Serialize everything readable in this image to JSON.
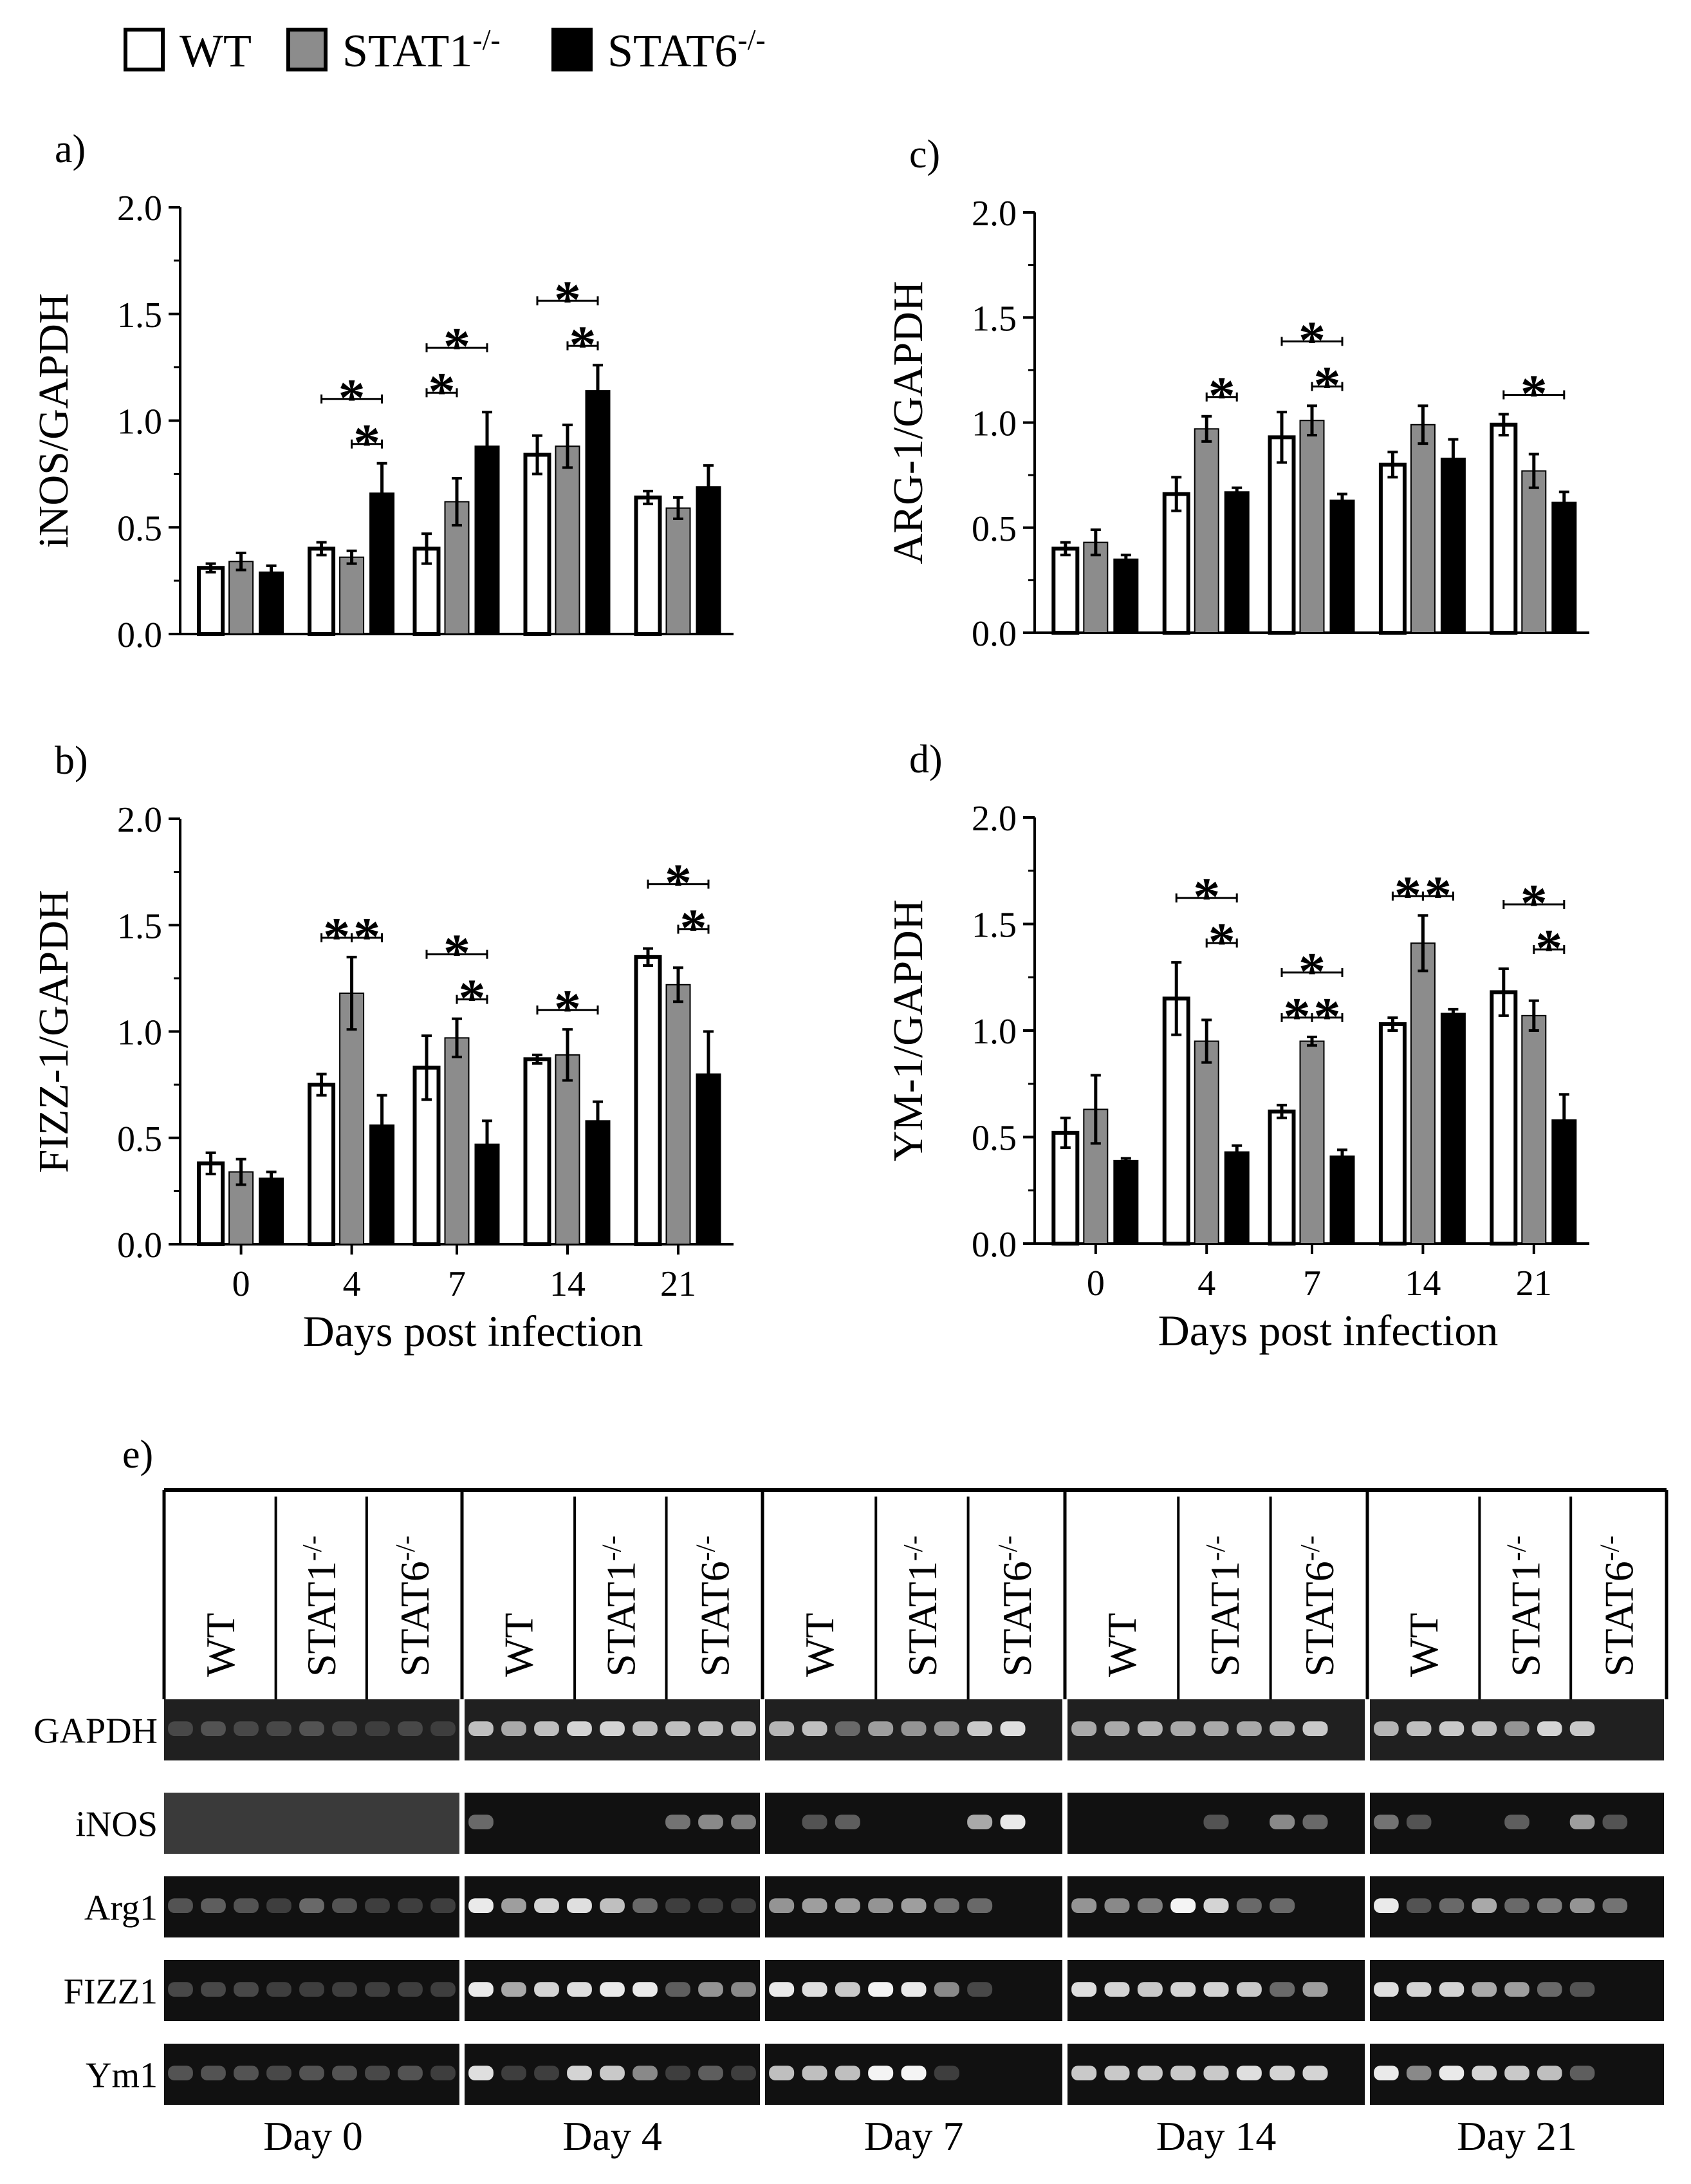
{
  "legend": {
    "items": [
      {
        "label": "WT",
        "sup": "",
        "color": "#ffffff"
      },
      {
        "label": "STAT1",
        "sup": "-/-",
        "color": "#8c8c8c"
      },
      {
        "label": "STAT6",
        "sup": "-/-",
        "color": "#000000"
      }
    ]
  },
  "colors": {
    "wt": "#ffffff",
    "stat1": "#8c8c8c",
    "stat6": "#000000"
  },
  "chart_data": [
    {
      "id": "a",
      "panel_label": "a)",
      "type": "bar",
      "ylabel": "iNOS/GAPDH",
      "xlabel": "",
      "ylim": [
        0,
        2.0
      ],
      "yticks": [
        "0.0",
        "0.5",
        "1.0",
        "1.5",
        "2.0"
      ],
      "categories": [
        "0",
        "4",
        "7",
        "14",
        "21"
      ],
      "show_x_ticks": false,
      "series": [
        {
          "name": "WT",
          "values": [
            0.31,
            0.4,
            0.4,
            0.84,
            0.64
          ],
          "errors": [
            0.02,
            0.03,
            0.07,
            0.09,
            0.03
          ]
        },
        {
          "name": "STAT1-/-",
          "values": [
            0.34,
            0.36,
            0.62,
            0.88,
            0.59
          ],
          "errors": [
            0.04,
            0.03,
            0.11,
            0.1,
            0.05
          ]
        },
        {
          "name": "STAT6-/-",
          "values": [
            0.29,
            0.66,
            0.88,
            1.14,
            0.69
          ],
          "errors": [
            0.03,
            0.14,
            0.16,
            0.12,
            0.1
          ]
        }
      ],
      "significance": [
        {
          "group": 1,
          "from": 0,
          "to": 2,
          "level": 1,
          "label": "*"
        },
        {
          "group": 1,
          "from": 1,
          "to": 2,
          "level": 0,
          "label": "*"
        },
        {
          "group": 2,
          "from": 0,
          "to": 2,
          "level": 1,
          "label": "*"
        },
        {
          "group": 2,
          "from": 0,
          "to": 1,
          "level": 0,
          "label": "*"
        },
        {
          "group": 3,
          "from": 0,
          "to": 2,
          "level": 1,
          "label": "*"
        },
        {
          "group": 3,
          "from": 1,
          "to": 2,
          "level": 0,
          "label": "*"
        }
      ]
    },
    {
      "id": "b",
      "panel_label": "b)",
      "type": "bar",
      "ylabel": "FIZZ-1/GAPDH",
      "xlabel": "Days post  infection",
      "ylim": [
        0,
        2.0
      ],
      "yticks": [
        "0.0",
        "0.5",
        "1.0",
        "1.5",
        "2.0"
      ],
      "categories": [
        "0",
        "4",
        "7",
        "14",
        "21"
      ],
      "show_x_ticks": true,
      "series": [
        {
          "name": "WT",
          "values": [
            0.38,
            0.75,
            0.83,
            0.87,
            1.35
          ],
          "errors": [
            0.05,
            0.05,
            0.15,
            0.02,
            0.04
          ]
        },
        {
          "name": "STAT1-/-",
          "values": [
            0.34,
            1.18,
            0.97,
            0.89,
            1.22
          ],
          "errors": [
            0.06,
            0.17,
            0.09,
            0.12,
            0.08
          ]
        },
        {
          "name": "STAT6-/-",
          "values": [
            0.31,
            0.56,
            0.47,
            0.58,
            0.8
          ],
          "errors": [
            0.03,
            0.14,
            0.11,
            0.09,
            0.2
          ]
        }
      ],
      "significance": [
        {
          "group": 1,
          "from": 0,
          "to": 1,
          "level": 0,
          "label": "*"
        },
        {
          "group": 1,
          "from": 1,
          "to": 2,
          "level": 0,
          "label": "*"
        },
        {
          "group": 2,
          "from": 0,
          "to": 2,
          "level": 1,
          "label": "*"
        },
        {
          "group": 2,
          "from": 1,
          "to": 2,
          "level": 0,
          "label": "*"
        },
        {
          "group": 3,
          "from": 0,
          "to": 2,
          "level": 0,
          "label": "*"
        },
        {
          "group": 4,
          "from": 0,
          "to": 2,
          "level": 1,
          "label": "*"
        },
        {
          "group": 4,
          "from": 1,
          "to": 2,
          "level": 0,
          "label": "*"
        }
      ]
    },
    {
      "id": "c",
      "panel_label": "c)",
      "type": "bar",
      "ylabel": "ARG-1/GAPDH",
      "xlabel": "",
      "ylim": [
        0,
        2.0
      ],
      "yticks": [
        "0.0",
        "0.5",
        "1.0",
        "1.5",
        "2.0"
      ],
      "categories": [
        "0",
        "4",
        "7",
        "14",
        "21"
      ],
      "show_x_ticks": false,
      "series": [
        {
          "name": "WT",
          "values": [
            0.4,
            0.66,
            0.93,
            0.8,
            0.99
          ],
          "errors": [
            0.03,
            0.08,
            0.12,
            0.06,
            0.05
          ]
        },
        {
          "name": "STAT1-/-",
          "values": [
            0.43,
            0.97,
            1.01,
            0.99,
            0.77
          ],
          "errors": [
            0.06,
            0.06,
            0.07,
            0.09,
            0.08
          ]
        },
        {
          "name": "STAT6-/-",
          "values": [
            0.35,
            0.67,
            0.63,
            0.83,
            0.62
          ],
          "errors": [
            0.02,
            0.02,
            0.03,
            0.09,
            0.05
          ]
        }
      ],
      "significance": [
        {
          "group": 1,
          "from": 1,
          "to": 2,
          "level": 0,
          "label": "*"
        },
        {
          "group": 2,
          "from": 0,
          "to": 2,
          "level": 1,
          "label": "*"
        },
        {
          "group": 2,
          "from": 1,
          "to": 2,
          "level": 0,
          "label": "*"
        },
        {
          "group": 4,
          "from": 0,
          "to": 2,
          "level": 0,
          "label": "*"
        }
      ]
    },
    {
      "id": "d",
      "panel_label": "d)",
      "type": "bar",
      "ylabel": "YM-1/GAPDH",
      "xlabel": "Days post  infection",
      "ylim": [
        0,
        2.0
      ],
      "yticks": [
        "0.0",
        "0.5",
        "1.0",
        "1.5",
        "2.0"
      ],
      "categories": [
        "0",
        "4",
        "7",
        "14",
        "21"
      ],
      "show_x_ticks": true,
      "series": [
        {
          "name": "WT",
          "values": [
            0.52,
            1.15,
            0.62,
            1.03,
            1.18
          ],
          "errors": [
            0.07,
            0.17,
            0.03,
            0.03,
            0.11
          ]
        },
        {
          "name": "STAT1-/-",
          "values": [
            0.63,
            0.95,
            0.95,
            1.41,
            1.07
          ],
          "errors": [
            0.16,
            0.1,
            0.02,
            0.13,
            0.07
          ]
        },
        {
          "name": "STAT6-/-",
          "values": [
            0.39,
            0.43,
            0.41,
            1.08,
            0.58
          ],
          "errors": [
            0.01,
            0.03,
            0.03,
            0.02,
            0.12
          ]
        }
      ],
      "significance": [
        {
          "group": 1,
          "from": 0,
          "to": 2,
          "level": 1,
          "label": "*"
        },
        {
          "group": 1,
          "from": 1,
          "to": 2,
          "level": 0,
          "label": "*"
        },
        {
          "group": 2,
          "from": 0,
          "to": 2,
          "level": 1,
          "label": "*"
        },
        {
          "group": 2,
          "from": 0,
          "to": 1,
          "level": 0,
          "label": "*"
        },
        {
          "group": 2,
          "from": 1,
          "to": 2,
          "level": 0,
          "label": "*"
        },
        {
          "group": 3,
          "from": 0,
          "to": 1,
          "level": 0,
          "label": "*"
        },
        {
          "group": 3,
          "from": 1,
          "to": 2,
          "level": 0,
          "label": "*"
        },
        {
          "group": 4,
          "from": 0,
          "to": 2,
          "level": 1,
          "label": "*"
        },
        {
          "group": 4,
          "from": 1,
          "to": 2,
          "level": 0,
          "label": "*"
        }
      ]
    }
  ],
  "gel": {
    "panel_label": "e)",
    "column_labels": [
      "WT",
      "STAT1",
      "STAT6"
    ],
    "column_sup": "-/-",
    "rows": [
      "GAPDH",
      "iNOS",
      "Arg1",
      "FIZZ1",
      "Ym1"
    ],
    "days": [
      "Day 0",
      "Day 4",
      "Day 7",
      "Day 14",
      "Day 21"
    ],
    "band_intensity": [
      [
        [
          0.15,
          0.2,
          0.15,
          0.15,
          0.2,
          0.15,
          0.1,
          0.15,
          0.1
        ],
        [
          0.7,
          0.6,
          0.7,
          0.8,
          0.8,
          0.7,
          0.7,
          0.7,
          0.7
        ],
        [
          0.65,
          0.7,
          0.3,
          0.55,
          0.5,
          0.5,
          0.75,
          0.85,
          0.0
        ],
        [
          0.6,
          0.6,
          0.65,
          0.6,
          0.6,
          0.6,
          0.65,
          0.75,
          0.0
        ],
        [
          0.65,
          0.7,
          0.75,
          0.7,
          0.5,
          0.8,
          0.75,
          0.0,
          0.0
        ]
      ],
      [
        [
          0,
          0,
          0,
          0,
          0,
          0,
          0,
          0,
          0
        ],
        [
          0.3,
          0,
          0,
          0,
          0,
          0,
          0.35,
          0.45,
          0.4
        ],
        [
          0,
          0.2,
          0.25,
          0,
          0,
          0,
          0.6,
          0.9,
          0.0
        ],
        [
          0,
          0,
          0,
          0,
          0.2,
          0,
          0.45,
          0.3,
          0.0
        ],
        [
          0.35,
          0.2,
          0,
          0,
          0.25,
          0,
          0.55,
          0.2,
          0.0
        ]
      ],
      [
        [
          0.2,
          0.25,
          0.2,
          0.1,
          0.3,
          0.2,
          0.1,
          0.1,
          0.1
        ],
        [
          0.9,
          0.55,
          0.8,
          0.85,
          0.7,
          0.3,
          0.1,
          0.1,
          0.1
        ],
        [
          0.5,
          0.55,
          0.55,
          0.5,
          0.55,
          0.35,
          0.3,
          0.0,
          0.0
        ],
        [
          0.5,
          0.45,
          0.4,
          0.95,
          0.8,
          0.3,
          0.3,
          0.0,
          0.0
        ],
        [
          0.9,
          0.2,
          0.3,
          0.6,
          0.3,
          0.4,
          0.5,
          0.35,
          0.0
        ]
      ],
      [
        [
          0.15,
          0.15,
          0.15,
          0.1,
          0.1,
          0.1,
          0.1,
          0.1,
          0.1
        ],
        [
          0.9,
          0.6,
          0.8,
          0.85,
          0.9,
          0.9,
          0.25,
          0.5,
          0.45
        ],
        [
          0.9,
          0.85,
          0.75,
          0.95,
          0.9,
          0.45,
          0.15,
          0.0,
          0.0
        ],
        [
          0.85,
          0.8,
          0.75,
          0.8,
          0.8,
          0.75,
          0.3,
          0.55,
          0.0
        ],
        [
          0.85,
          0.8,
          0.8,
          0.6,
          0.55,
          0.3,
          0.2,
          0.0,
          0.0
        ]
      ],
      [
        [
          0.2,
          0.2,
          0.2,
          0.15,
          0.2,
          0.2,
          0.15,
          0.2,
          0.1
        ],
        [
          0.85,
          0.1,
          0.1,
          0.8,
          0.75,
          0.45,
          0.1,
          0.25,
          0.1
        ],
        [
          0.7,
          0.7,
          0.7,
          0.95,
          0.95,
          0.1,
          0.0,
          0.0,
          0.0
        ],
        [
          0.75,
          0.75,
          0.75,
          0.75,
          0.75,
          0.85,
          0.8,
          0.8,
          0.0
        ],
        [
          0.9,
          0.45,
          0.9,
          0.8,
          0.75,
          0.7,
          0.25,
          0.0,
          0.0
        ]
      ]
    ]
  }
}
